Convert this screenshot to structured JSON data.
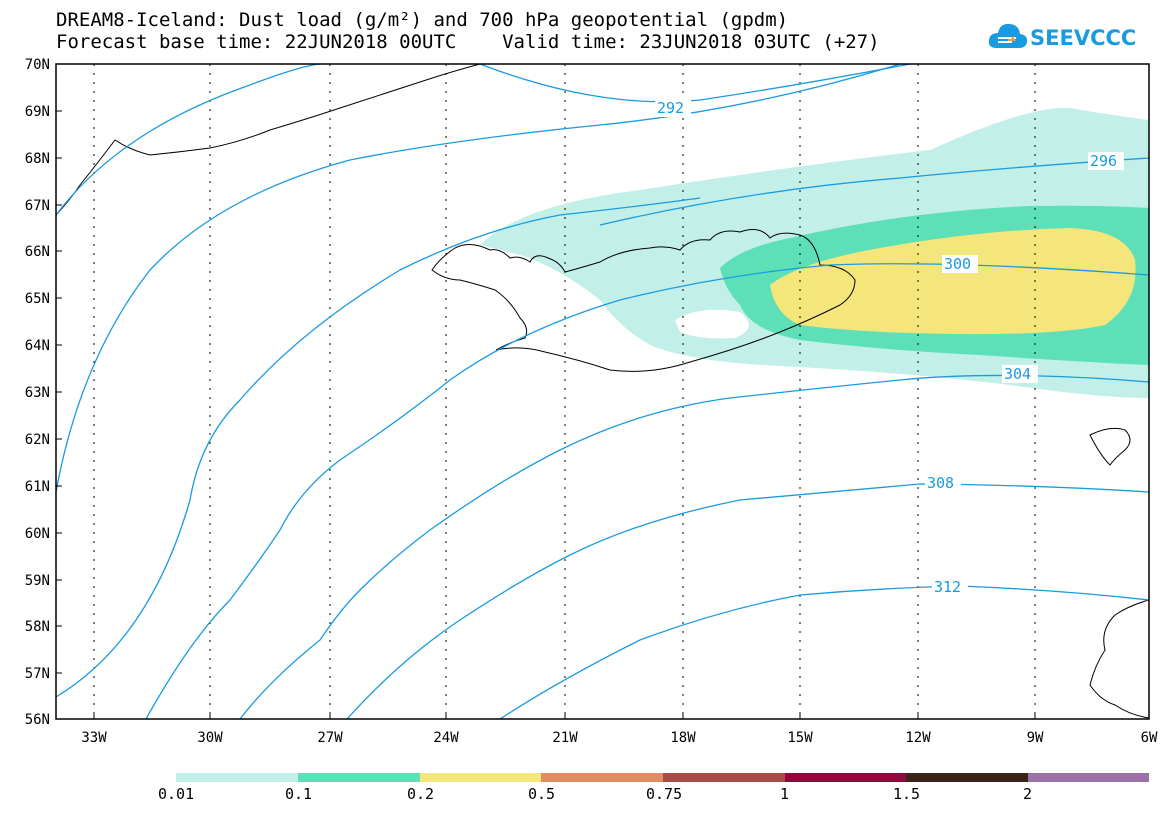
{
  "header": {
    "title_line1": "DREAM8-Iceland: Dust load (g/m²) and 700 hPa geopotential (gpdm)",
    "title_line2": "Forecast base time: 22JUN2018 00UTC    Valid time: 23JUN2018 03UTC (+27)"
  },
  "logo": {
    "text": "SEEVCCC",
    "icon": "cloud-icon",
    "color": "#1a9be0"
  },
  "map": {
    "lat_range": [
      56,
      70
    ],
    "lon_range": [
      -34.5,
      -6
    ],
    "lat_labels": [
      "70N",
      "69N",
      "68N",
      "67N",
      "66N",
      "65N",
      "64N",
      "63N",
      "62N",
      "61N",
      "60N",
      "59N",
      "58N",
      "57N",
      "56N"
    ],
    "lon_labels": [
      "33W",
      "30W",
      "27W",
      "24W",
      "21W",
      "18W",
      "15W",
      "12W",
      "9W",
      "6W"
    ],
    "contour_color": "#1a9be0",
    "contour_labels": [
      "292",
      "296",
      "300",
      "304",
      "308",
      "312"
    ]
  },
  "colorbar": {
    "colors": [
      "#c2f0e8",
      "#5de0b8",
      "#f5e67c",
      "#e08c60",
      "#a84c48",
      "#8c0a3c",
      "#3a2418",
      "#9c70a8"
    ],
    "labels": [
      "0.01",
      "0.1",
      "0.2",
      "0.5",
      "0.75",
      "1",
      "1.5",
      "2"
    ]
  }
}
